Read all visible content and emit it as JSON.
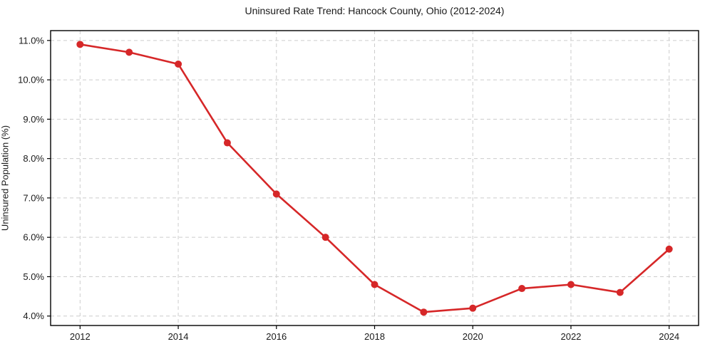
{
  "chart_data": {
    "type": "line",
    "title": "Uninsured Rate Trend: Hancock County, Ohio (2012-2024)",
    "xlabel": "",
    "ylabel": "Uninsured Population (%)",
    "x": [
      2012,
      2013,
      2014,
      2015,
      2016,
      2017,
      2018,
      2019,
      2020,
      2021,
      2022,
      2023,
      2024
    ],
    "values": [
      10.9,
      10.7,
      10.4,
      8.4,
      7.1,
      6.0,
      4.8,
      4.1,
      4.2,
      4.7,
      4.8,
      4.6,
      5.7
    ],
    "xlim": [
      2011.4,
      2024.6
    ],
    "ylim": [
      3.76,
      11.25
    ],
    "xticks": [
      2012,
      2014,
      2016,
      2018,
      2020,
      2022,
      2024
    ],
    "xtick_labels": [
      "2012",
      "2014",
      "2016",
      "2018",
      "2020",
      "2022",
      "2024"
    ],
    "yticks": [
      4,
      5,
      6,
      7,
      8,
      9,
      10,
      11
    ],
    "ytick_labels": [
      "4.0%",
      "5.0%",
      "6.0%",
      "7.0%",
      "8.0%",
      "9.0%",
      "10.0%",
      "11.0%"
    ],
    "grid": true,
    "legend_position": "none",
    "line_color": "#d62728",
    "marker": "circle",
    "grid_color": "#cccccc",
    "spine_color": "#000000"
  }
}
